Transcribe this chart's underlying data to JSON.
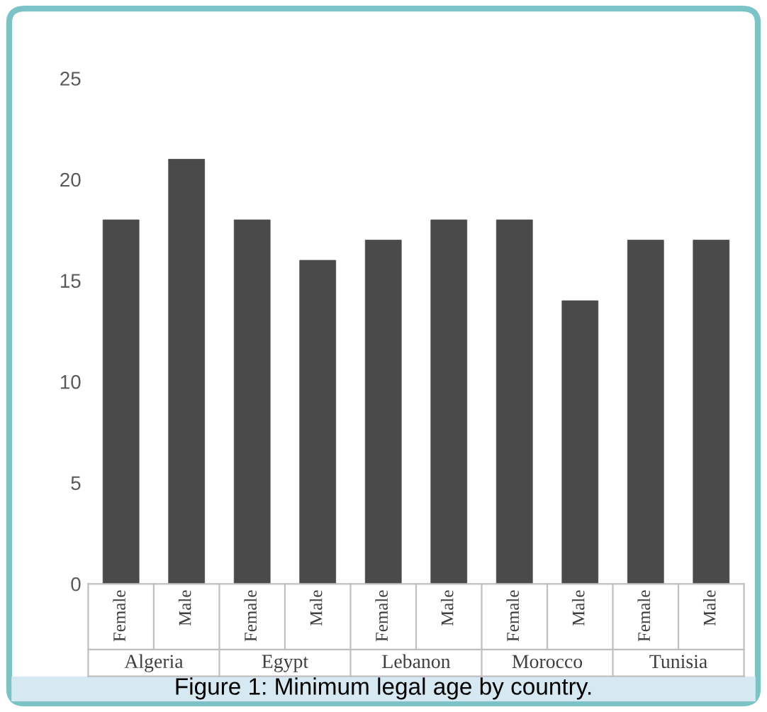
{
  "chart_data": {
    "type": "bar",
    "title": "Figure 1: Minimum legal age by country.",
    "categories": [
      "Female",
      "Male",
      "Female",
      "Male",
      "Female",
      "Male",
      "Female",
      "Male",
      "Female",
      "Male"
    ],
    "values": [
      18,
      21,
      18,
      16,
      17,
      18,
      18,
      14,
      17,
      17
    ],
    "color": "#4a4a4a",
    "ylim": [
      0,
      25
    ],
    "yticks": [
      0,
      5,
      10,
      15,
      20,
      25
    ],
    "grid": false,
    "annotations": [
      "Algeria",
      "Egypt",
      "Lebanon",
      "Morocco",
      "Tunisia"
    ]
  }
}
